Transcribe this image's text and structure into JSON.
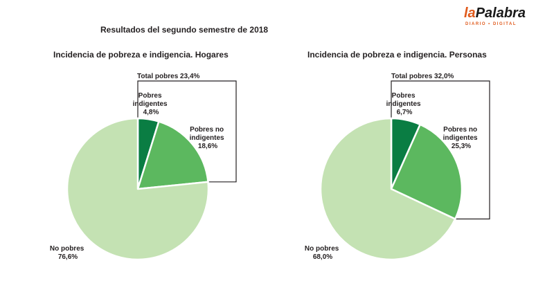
{
  "header": {
    "title": "Resultados del segundo semestre de 2018"
  },
  "logo": {
    "part1": "la",
    "part2": "Palabra",
    "tagline_1": "DIARIO",
    "tagline_sep": "•",
    "tagline_2": "DIGITAL",
    "accent_color": "#e05a1c"
  },
  "colors": {
    "indigentes": "#0a7d43",
    "no_indigentes": "#5cb85f",
    "no_pobres": "#c4e2b3",
    "bracket": "#231f20"
  },
  "chart_data": [
    {
      "type": "pie",
      "title": "Incidencia de pobreza e indigencia. Hogares",
      "total_label": "Total pobres 23,4%",
      "slices": [
        {
          "label_lines": [
            "Pobres",
            "indigentes"
          ],
          "value_label": "4,8%",
          "value": 4.8,
          "color": "#0a7d43"
        },
        {
          "label_lines": [
            "Pobres no",
            "indigentes"
          ],
          "value_label": "18,6%",
          "value": 18.6,
          "color": "#5cb85f"
        },
        {
          "label_lines": [
            "No pobres"
          ],
          "value_label": "76,6%",
          "value": 76.6,
          "color": "#c4e2b3"
        }
      ]
    },
    {
      "type": "pie",
      "title": "Incidencia de pobreza e indigencia. Personas",
      "total_label": "Total pobres 32,0%",
      "slices": [
        {
          "label_lines": [
            "Pobres",
            "indigentes"
          ],
          "value_label": "6,7%",
          "value": 6.7,
          "color": "#0a7d43"
        },
        {
          "label_lines": [
            "Pobres no",
            "indigentes"
          ],
          "value_label": "25,3%",
          "value": 25.3,
          "color": "#5cb85f"
        },
        {
          "label_lines": [
            "No pobres"
          ],
          "value_label": "68,0%",
          "value": 68.0,
          "color": "#c4e2b3"
        }
      ]
    }
  ]
}
